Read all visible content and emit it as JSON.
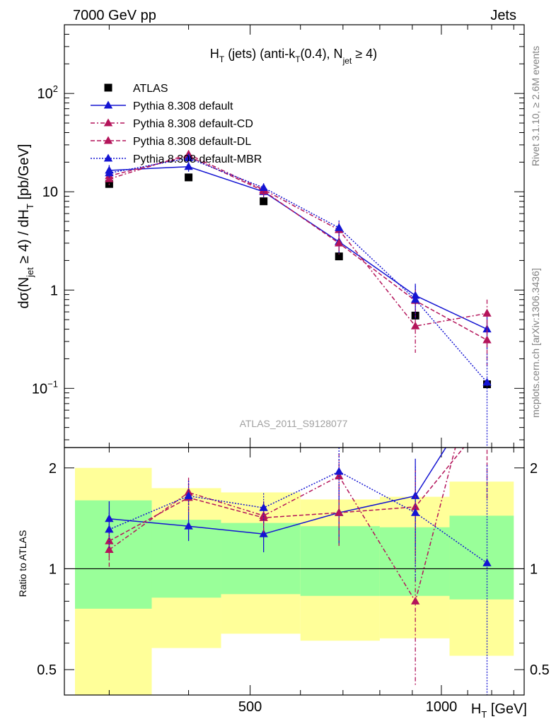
{
  "header": {
    "energy_label": "7000 GeV pp",
    "category_label": "Jets"
  },
  "side_labels": {
    "rivet": "Rivet 3.1.10, ≥ 2.6M events",
    "mcplots": "mcplots.cern.ch [arXiv:1306.3436]"
  },
  "watermark": "ATLAS_2011_S9128077",
  "chart_data": [
    {
      "type": "line",
      "title": {
        "main": "H",
        "sub1": "T",
        "mid1": " (jets) (anti-k",
        "sub2": "T",
        "mid2": "(0.4), N",
        "sub3": "jet",
        "end": " ≥ 4)"
      },
      "ylabel": {
        "a": "dσ(N",
        "a_sub": "jet",
        "b": " ≥ 4) / dH",
        "b_sub": "T",
        "c": " [pb/GeV]"
      },
      "xscale": "log",
      "yscale": "log",
      "xlim": [
        255,
        1350
      ],
      "ylim": [
        0.025,
        500
      ],
      "y_ticks": [
        {
          "value": 0.1,
          "base": "10",
          "exp": "−1"
        },
        {
          "value": 1,
          "base": "1",
          "exp": ""
        },
        {
          "value": 10,
          "base": "10",
          "exp": ""
        },
        {
          "value": 100,
          "base": "10",
          "exp": "2"
        }
      ],
      "x": [
        300,
        400,
        525,
        690,
        910,
        1180
      ],
      "series": [
        {
          "name": "ATLAS",
          "color": "#000000",
          "marker": "square",
          "line": "none",
          "values": [
            12,
            14,
            8,
            2.2,
            0.55,
            0.11
          ]
        },
        {
          "name": "Pythia 8.308 default",
          "color": "#1414d2",
          "marker": "triangle",
          "line": "solid",
          "values": [
            16.5,
            18,
            10,
            3.1,
            0.88,
            0.4
          ],
          "err": [
            2.2,
            2.0,
            1.2,
            0.7,
            0.28,
            0.15
          ]
        },
        {
          "name": "Pythia 8.308 default-CD",
          "color": "#b4145a",
          "marker": "triangle",
          "line": "dashdot",
          "values": [
            13.5,
            24,
            10.5,
            4.1,
            0.43,
            0.58
          ],
          "err": [
            1.8,
            2.5,
            1.2,
            0.8,
            0.2,
            0.22
          ]
        },
        {
          "name": "Pythia 8.308 default-DL",
          "color": "#b4145a",
          "marker": "triangle",
          "line": "dashed",
          "values": [
            14.5,
            23,
            10.2,
            3.0,
            0.78,
            0.31
          ],
          "err": [
            1.8,
            2.5,
            1.2,
            0.7,
            0.25,
            0.14
          ]
        },
        {
          "name": "Pythia 8.308 default-MBR",
          "color": "#1414d2",
          "marker": "triangle",
          "line": "dotted",
          "values": [
            15.5,
            22,
            11,
            4.3,
            0.8,
            0.115
          ],
          "err": [
            2.0,
            2.5,
            1.2,
            0.8,
            0.3,
            0.11
          ]
        }
      ]
    },
    {
      "type": "line",
      "ylabel": "Ratio to ATLAS",
      "xlabel": {
        "main": "H",
        "sub": "T",
        "unit": " [GeV]"
      },
      "xscale": "log",
      "yscale": "log",
      "xlim": [
        255,
        1350
      ],
      "ylim": [
        0.42,
        2.3
      ],
      "x_ticks": [
        {
          "value": 500,
          "label": "500"
        },
        {
          "value": 1000,
          "label": "1000"
        }
      ],
      "y_ticks": [
        {
          "value": 0.5,
          "label": "0.5"
        },
        {
          "value": 1,
          "label": "1"
        },
        {
          "value": 2,
          "label": "2"
        }
      ],
      "bands": [
        {
          "x0": 265,
          "x1": 350,
          "outer": [
            0.42,
            2.0
          ],
          "inner": [
            0.76,
            1.6
          ]
        },
        {
          "x0": 350,
          "x1": 450,
          "outer": [
            0.58,
            1.74
          ],
          "inner": [
            0.82,
            1.4
          ]
        },
        {
          "x0": 450,
          "x1": 600,
          "outer": [
            0.64,
            1.69
          ],
          "inner": [
            0.84,
            1.37
          ]
        },
        {
          "x0": 600,
          "x1": 800,
          "outer": [
            0.61,
            1.61
          ],
          "inner": [
            0.83,
            1.34
          ]
        },
        {
          "x0": 800,
          "x1": 1030,
          "outer": [
            0.62,
            1.64
          ],
          "inner": [
            0.83,
            1.33
          ]
        },
        {
          "x0": 1030,
          "x1": 1300,
          "outer": [
            0.55,
            1.82
          ],
          "inner": [
            0.81,
            1.44
          ]
        }
      ],
      "x": [
        300,
        400,
        525,
        690,
        910,
        1180
      ],
      "series": [
        {
          "name": "Pythia 8.308 default",
          "color": "#1414d2",
          "line": "solid",
          "values": [
            1.41,
            1.34,
            1.27,
            1.47,
            1.65,
            3.6
          ],
          "err": [
            0.18,
            0.13,
            0.15,
            0.28,
            0.48,
            1.3
          ]
        },
        {
          "name": "Pythia 8.308 default-CD",
          "color": "#b4145a",
          "line": "dashdot",
          "values": [
            1.14,
            1.69,
            1.44,
            1.89,
            0.8,
            5.3
          ],
          "err": [
            0.14,
            0.18,
            0.15,
            0.32,
            0.35,
            2.0
          ]
        },
        {
          "name": "Pythia 8.308 default-DL",
          "color": "#b4145a",
          "line": "dashed",
          "values": [
            1.21,
            1.63,
            1.42,
            1.47,
            1.53,
            2.8
          ],
          "err": [
            0.15,
            0.18,
            0.15,
            0.3,
            0.45,
            1.2
          ]
        },
        {
          "name": "Pythia 8.308 default-MBR",
          "color": "#1414d2",
          "line": "dotted",
          "values": [
            1.31,
            1.65,
            1.52,
            1.95,
            1.47,
            1.04
          ],
          "err": [
            0.16,
            0.18,
            0.16,
            0.35,
            0.55,
            1.0
          ]
        }
      ]
    }
  ]
}
